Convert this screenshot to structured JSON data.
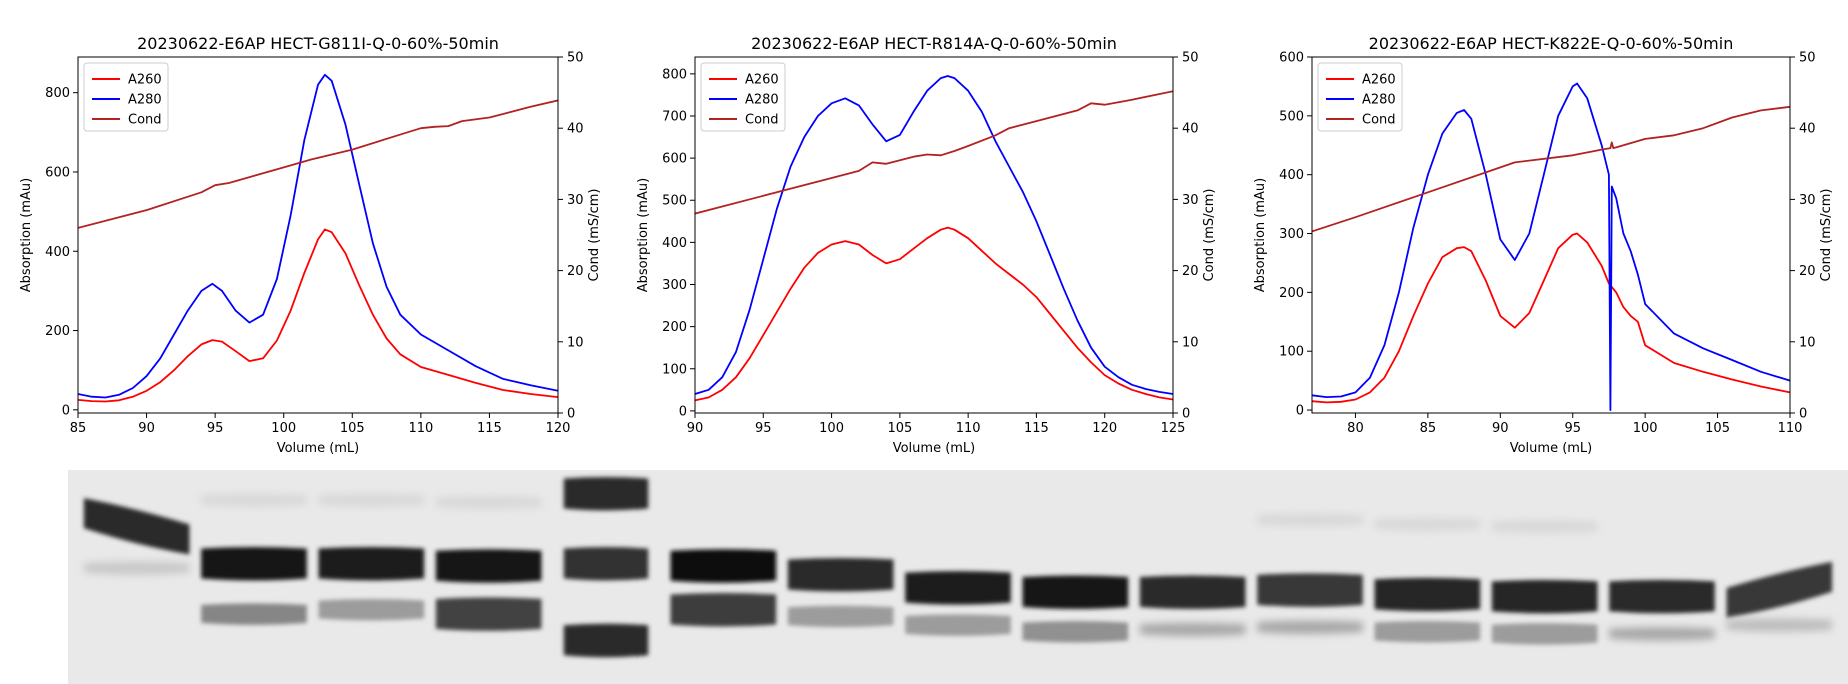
{
  "chart_data": [
    {
      "type": "line",
      "title": "20230622-E6AP HECT-G811I-Q-0-60%-50min",
      "xlabel": "Volume (mL)",
      "ylabel": "Absorption (mAu)",
      "y2label": "Cond (mS/cm)",
      "xlim": [
        85,
        120
      ],
      "ylim": [
        -8,
        890
      ],
      "y2lim": [
        0,
        50
      ],
      "xticks": [
        85,
        90,
        95,
        100,
        105,
        110,
        115,
        120
      ],
      "yticks": [
        0,
        200,
        400,
        600,
        800
      ],
      "y2ticks": [
        0,
        10,
        20,
        30,
        40,
        50
      ],
      "legend": "top-left",
      "series": [
        {
          "name": "A260",
          "color": "#ff0000",
          "axis": "left",
          "x": [
            85,
            86,
            87,
            88,
            89,
            90,
            91,
            92,
            93,
            94,
            94.8,
            95.5,
            96.5,
            97.5,
            98.5,
            99.5,
            100.5,
            101.5,
            102.5,
            103,
            103.5,
            104.5,
            105.5,
            106.5,
            107.5,
            108.5,
            110,
            112,
            114,
            116,
            118,
            120
          ],
          "y": [
            25,
            22,
            21,
            24,
            33,
            48,
            70,
            100,
            135,
            165,
            176,
            172,
            148,
            123,
            130,
            175,
            250,
            345,
            430,
            455,
            448,
            395,
            315,
            240,
            180,
            140,
            108,
            88,
            68,
            50,
            40,
            32
          ]
        },
        {
          "name": "A280",
          "color": "#0000ff",
          "axis": "left",
          "x": [
            85,
            86,
            87,
            88,
            89,
            90,
            91,
            92,
            93,
            94,
            94.8,
            95.5,
            96.5,
            97.5,
            98.5,
            99.5,
            100.5,
            101.5,
            102.5,
            103,
            103.5,
            104.5,
            105.5,
            106.5,
            107.5,
            108.5,
            110,
            112,
            114,
            116,
            118,
            120
          ],
          "y": [
            40,
            33,
            31,
            38,
            55,
            85,
            130,
            190,
            250,
            300,
            318,
            300,
            250,
            220,
            240,
            330,
            490,
            680,
            820,
            845,
            830,
            720,
            570,
            420,
            310,
            240,
            190,
            150,
            110,
            78,
            62,
            48
          ]
        },
        {
          "name": "Cond",
          "color": "#b22222",
          "axis": "right",
          "x": [
            85,
            90,
            94,
            95,
            96,
            100,
            102,
            105,
            108,
            110,
            111,
            112,
            113,
            115,
            116,
            118,
            120
          ],
          "y": [
            26,
            28.5,
            31,
            32,
            32.3,
            34.5,
            35.6,
            37,
            38.8,
            40,
            40.2,
            40.3,
            41,
            41.5,
            42,
            43,
            43.9
          ]
        }
      ]
    },
    {
      "type": "line",
      "title": "20230622-E6AP HECT-R814A-Q-0-60%-50min",
      "xlabel": "Volume (mL)",
      "ylabel": "Absorption (mAu)",
      "y2label": "Cond (mS/cm)",
      "xlim": [
        90,
        125
      ],
      "ylim": [
        -5,
        840
      ],
      "y2lim": [
        0,
        50
      ],
      "xticks": [
        90,
        95,
        100,
        105,
        110,
        115,
        120,
        125
      ],
      "yticks": [
        0,
        100,
        200,
        300,
        400,
        500,
        600,
        700,
        800
      ],
      "y2ticks": [
        0,
        10,
        20,
        30,
        40,
        50
      ],
      "legend": "top-left",
      "series": [
        {
          "name": "A260",
          "color": "#ff0000",
          "axis": "left",
          "x": [
            90,
            91,
            92,
            93,
            94,
            95,
            96,
            97,
            98,
            99,
            100,
            101,
            102,
            103,
            104,
            105,
            106,
            107,
            108,
            108.5,
            109,
            110,
            111,
            112,
            113,
            114,
            115,
            116,
            117,
            118,
            119,
            120,
            121,
            122,
            123,
            124,
            125
          ],
          "y": [
            25,
            32,
            50,
            80,
            125,
            180,
            235,
            290,
            340,
            375,
            395,
            403,
            395,
            370,
            350,
            360,
            385,
            410,
            430,
            435,
            430,
            410,
            380,
            350,
            325,
            300,
            270,
            230,
            190,
            150,
            115,
            85,
            65,
            50,
            40,
            32,
            27
          ]
        },
        {
          "name": "A280",
          "color": "#0000ff",
          "axis": "left",
          "x": [
            90,
            91,
            92,
            93,
            94,
            95,
            96,
            97,
            98,
            99,
            100,
            101,
            102,
            103,
            104,
            105,
            106,
            107,
            108,
            108.5,
            109,
            110,
            111,
            112,
            113,
            114,
            115,
            116,
            117,
            118,
            119,
            120,
            121,
            122,
            123,
            124,
            125
          ],
          "y": [
            40,
            50,
            80,
            140,
            240,
            360,
            480,
            580,
            650,
            700,
            730,
            742,
            725,
            680,
            640,
            655,
            710,
            760,
            790,
            795,
            790,
            760,
            710,
            640,
            580,
            520,
            450,
            370,
            290,
            215,
            150,
            105,
            80,
            62,
            52,
            45,
            40
          ]
        },
        {
          "name": "Cond",
          "color": "#b22222",
          "axis": "right",
          "x": [
            90,
            95,
            100,
            102,
            103,
            104,
            105,
            106,
            107,
            108,
            109,
            110,
            112,
            113,
            115,
            118,
            119,
            120,
            122,
            125
          ],
          "y": [
            28,
            30.5,
            33,
            34,
            35.2,
            35,
            35.5,
            36,
            36.3,
            36.2,
            36.8,
            37.5,
            39,
            40,
            41,
            42.5,
            43.5,
            43.3,
            44,
            45.2
          ]
        }
      ]
    },
    {
      "type": "line",
      "title": "20230622-E6AP HECT-K822E-Q-0-60%-50min",
      "xlabel": "Volume (mL)",
      "ylabel": "Absorption (mAu)",
      "y2label": "Cond (mS/cm)",
      "xlim": [
        77,
        110
      ],
      "ylim": [
        -5,
        600
      ],
      "y2lim": [
        0,
        50
      ],
      "xticks": [
        80,
        85,
        90,
        95,
        100,
        105,
        110
      ],
      "yticks": [
        0,
        100,
        200,
        300,
        400,
        500,
        600
      ],
      "y2ticks": [
        0,
        10,
        20,
        30,
        40,
        50
      ],
      "legend": "top-left",
      "series": [
        {
          "name": "A260",
          "color": "#ff0000",
          "axis": "left",
          "x": [
            77,
            78,
            79,
            80,
            81,
            82,
            83,
            84,
            85,
            86,
            87,
            87.5,
            88,
            89,
            90,
            91,
            92,
            93,
            94,
            95,
            95.3,
            96,
            97,
            97.5,
            98,
            98.5,
            99,
            99.5,
            100,
            102,
            104,
            106,
            108,
            110
          ],
          "y": [
            15,
            13,
            14,
            18,
            30,
            55,
            100,
            160,
            215,
            260,
            275,
            277,
            270,
            220,
            160,
            140,
            165,
            220,
            275,
            298,
            300,
            285,
            245,
            215,
            200,
            175,
            160,
            150,
            110,
            80,
            65,
            52,
            40,
            30
          ]
        },
        {
          "name": "A280",
          "color": "#0000ff",
          "axis": "left",
          "x": [
            77,
            78,
            79,
            80,
            81,
            82,
            83,
            84,
            85,
            86,
            87,
            87.5,
            88,
            89,
            90,
            91,
            92,
            93,
            94,
            95,
            95.3,
            96,
            97,
            97.5,
            97.6,
            97.7,
            98,
            98.5,
            99,
            99.5,
            100,
            102,
            104,
            106,
            108,
            110
          ],
          "y": [
            25,
            22,
            23,
            30,
            55,
            110,
            200,
            310,
            400,
            470,
            505,
            510,
            495,
            400,
            290,
            255,
            300,
            400,
            500,
            550,
            555,
            530,
            450,
            400,
            0,
            380,
            360,
            300,
            270,
            230,
            180,
            130,
            105,
            85,
            65,
            50
          ]
        },
        {
          "name": "Cond",
          "color": "#b22222",
          "axis": "right",
          "x": [
            77,
            80,
            85,
            90,
            91,
            95,
            97,
            97.6,
            97.7,
            97.8,
            98,
            100,
            102,
            104,
            106,
            108,
            110
          ],
          "y": [
            25.5,
            27.5,
            31,
            34.5,
            35.2,
            36.2,
            37,
            37.2,
            38,
            37.2,
            37.3,
            38.5,
            39,
            40,
            41.5,
            42.5,
            43
          ]
        }
      ]
    }
  ],
  "gel": {
    "description_lanes": 15,
    "lanes": [
      {
        "bands": [
          {
            "y": 0.28,
            "i": 0.85,
            "slant": 0.06
          },
          {
            "y": 0.47,
            "i": 0.15
          }
        ]
      },
      {
        "bands": [
          {
            "y": 0.45,
            "i": 0.95
          },
          {
            "y": 0.68,
            "i": 0.45
          },
          {
            "y": 0.16,
            "i": 0.08
          }
        ]
      },
      {
        "bands": [
          {
            "y": 0.45,
            "i": 0.92
          },
          {
            "y": 0.66,
            "i": 0.35
          },
          {
            "y": 0.16,
            "i": 0.08
          }
        ]
      },
      {
        "bands": [
          {
            "y": 0.46,
            "i": 0.95
          },
          {
            "y": 0.68,
            "i": 0.75
          },
          {
            "y": 0.17,
            "i": 0.08
          }
        ]
      },
      {
        "bands": [
          {
            "y": 0.13,
            "i": 0.85
          },
          {
            "y": 0.45,
            "i": 0.82
          },
          {
            "y": 0.8,
            "i": 0.85
          }
        ],
        "marker": true
      },
      {
        "bands": [
          {
            "y": 0.46,
            "i": 0.98
          },
          {
            "y": 0.66,
            "i": 0.78
          }
        ]
      },
      {
        "bands": [
          {
            "y": 0.5,
            "i": 0.85
          },
          {
            "y": 0.69,
            "i": 0.35
          }
        ]
      },
      {
        "bands": [
          {
            "y": 0.56,
            "i": 0.92
          },
          {
            "y": 0.73,
            "i": 0.35
          }
        ]
      },
      {
        "bands": [
          {
            "y": 0.58,
            "i": 0.95
          },
          {
            "y": 0.76,
            "i": 0.4
          }
        ]
      },
      {
        "bands": [
          {
            "y": 0.58,
            "i": 0.85
          },
          {
            "y": 0.75,
            "i": 0.3
          }
        ]
      },
      {
        "bands": [
          {
            "y": 0.57,
            "i": 0.8
          },
          {
            "y": 0.74,
            "i": 0.3
          },
          {
            "y": 0.25,
            "i": 0.08
          }
        ]
      },
      {
        "bands": [
          {
            "y": 0.59,
            "i": 0.88
          },
          {
            "y": 0.76,
            "i": 0.35
          },
          {
            "y": 0.27,
            "i": 0.08
          }
        ]
      },
      {
        "bands": [
          {
            "y": 0.6,
            "i": 0.88
          },
          {
            "y": 0.77,
            "i": 0.35
          },
          {
            "y": 0.28,
            "i": 0.08
          }
        ]
      },
      {
        "bands": [
          {
            "y": 0.6,
            "i": 0.85
          },
          {
            "y": 0.77,
            "i": 0.3
          }
        ]
      },
      {
        "bands": [
          {
            "y": 0.57,
            "i": 0.8,
            "slant": -0.06
          },
          {
            "y": 0.73,
            "i": 0.2
          }
        ]
      }
    ]
  }
}
